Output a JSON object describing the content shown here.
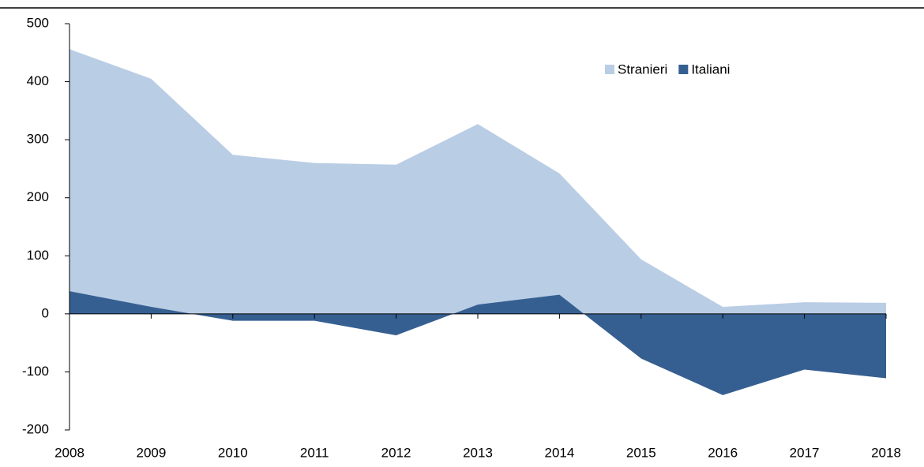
{
  "chart_data": {
    "type": "area",
    "categories": [
      "2008",
      "2009",
      "2010",
      "2011",
      "2012",
      "2013",
      "2014",
      "2015",
      "2016",
      "2017",
      "2018"
    ],
    "series": [
      {
        "name": "Stranieri",
        "color": "#b9cde5",
        "values": [
          456,
          405,
          274,
          260,
          257,
          327,
          242,
          94,
          12,
          20,
          19
        ]
      },
      {
        "name": "Italiani",
        "color": "#365f91",
        "values": [
          39,
          12,
          -12,
          -12,
          -37,
          16,
          33,
          -77,
          -140,
          -96,
          -111
        ]
      }
    ],
    "ylim": [
      -200,
      500
    ],
    "yticks": [
      -200,
      -100,
      0,
      100,
      200,
      300,
      400,
      500
    ],
    "legend": "top-right"
  }
}
